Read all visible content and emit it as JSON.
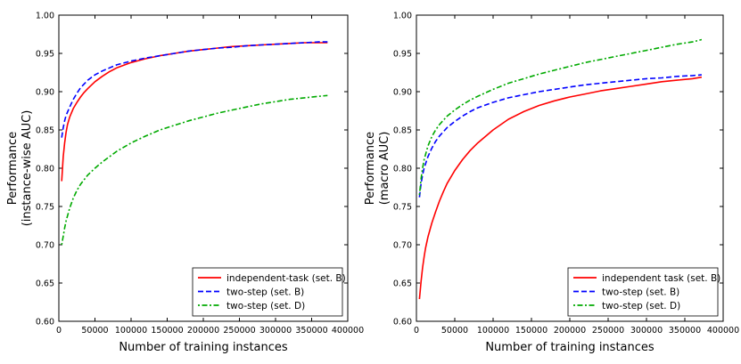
{
  "chart_data": [
    {
      "type": "line",
      "title": "",
      "xlabel": "Number of training instances",
      "ylabel_lines": [
        "Performance",
        "(instance-wise AUC)"
      ],
      "xlim": [
        0,
        400000
      ],
      "ylim": [
        0.6,
        1.0
      ],
      "x_ticks": [
        0,
        50000,
        100000,
        150000,
        200000,
        250000,
        300000,
        350000,
        400000
      ],
      "x_tick_labels": [
        "0",
        "50000",
        "100000",
        "150000",
        "200000",
        "250000",
        "300000",
        "350000",
        "400000"
      ],
      "y_ticks": [
        0.6,
        0.65,
        0.7,
        0.75,
        0.8,
        0.85,
        0.9,
        0.95,
        1.0
      ],
      "y_tick_labels": [
        "0.60",
        "0.65",
        "0.70",
        "0.75",
        "0.80",
        "0.85",
        "0.90",
        "0.95",
        "1.00"
      ],
      "legend_position": "bottom-right",
      "series": [
        {
          "name": "independent-task (set. B)",
          "color": "#ff0000",
          "style": "solid",
          "x": [
            4000,
            6000,
            8000,
            10000,
            12000,
            15000,
            20000,
            25000,
            30000,
            35000,
            40000,
            50000,
            60000,
            70000,
            80000,
            100000,
            120000,
            140000,
            160000,
            180000,
            200000,
            220000,
            240000,
            260000,
            280000,
            300000,
            320000,
            340000,
            360000,
            372000
          ],
          "y": [
            0.783,
            0.815,
            0.833,
            0.847,
            0.857,
            0.867,
            0.878,
            0.886,
            0.893,
            0.899,
            0.904,
            0.913,
            0.92,
            0.926,
            0.931,
            0.938,
            0.943,
            0.947,
            0.95,
            0.953,
            0.955,
            0.957,
            0.959,
            0.96,
            0.961,
            0.962,
            0.963,
            0.964,
            0.964,
            0.964
          ]
        },
        {
          "name": "two-step (set. B)",
          "color": "#0000ff",
          "style": "dashed",
          "x": [
            4000,
            6000,
            8000,
            10000,
            15000,
            20000,
            25000,
            30000,
            40000,
            50000,
            60000,
            70000,
            80000,
            100000,
            120000,
            140000,
            160000,
            180000,
            200000,
            220000,
            240000,
            260000,
            280000,
            300000,
            320000,
            340000,
            360000,
            372000
          ],
          "y": [
            0.84,
            0.853,
            0.862,
            0.869,
            0.88,
            0.89,
            0.898,
            0.905,
            0.915,
            0.922,
            0.927,
            0.931,
            0.935,
            0.94,
            0.944,
            0.947,
            0.95,
            0.953,
            0.955,
            0.957,
            0.958,
            0.96,
            0.961,
            0.962,
            0.963,
            0.964,
            0.965,
            0.965
          ]
        },
        {
          "name": "two-step (set. D)",
          "color": "#00aa00",
          "style": "dashdot",
          "x": [
            4000,
            6000,
            8000,
            10000,
            15000,
            20000,
            25000,
            30000,
            40000,
            50000,
            60000,
            80000,
            100000,
            120000,
            140000,
            160000,
            180000,
            200000,
            220000,
            240000,
            260000,
            280000,
            300000,
            320000,
            340000,
            360000,
            372000
          ],
          "y": [
            0.7,
            0.711,
            0.722,
            0.731,
            0.748,
            0.761,
            0.771,
            0.779,
            0.791,
            0.8,
            0.808,
            0.822,
            0.833,
            0.842,
            0.85,
            0.856,
            0.862,
            0.867,
            0.872,
            0.876,
            0.88,
            0.884,
            0.887,
            0.89,
            0.892,
            0.894,
            0.895
          ]
        }
      ]
    },
    {
      "type": "line",
      "title": "",
      "xlabel": "Number of training instances",
      "ylabel_lines": [
        "Performance",
        "(macro AUC)"
      ],
      "xlim": [
        0,
        400000
      ],
      "ylim": [
        0.6,
        1.0
      ],
      "x_ticks": [
        0,
        50000,
        100000,
        150000,
        200000,
        250000,
        300000,
        350000,
        400000
      ],
      "x_tick_labels": [
        "0",
        "50000",
        "100000",
        "150000",
        "200000",
        "250000",
        "300000",
        "350000",
        "400000"
      ],
      "y_ticks": [
        0.6,
        0.65,
        0.7,
        0.75,
        0.8,
        0.85,
        0.9,
        0.95,
        1.0
      ],
      "y_tick_labels": [
        "0.60",
        "0.65",
        "0.70",
        "0.75",
        "0.80",
        "0.85",
        "0.90",
        "0.95",
        "1.00"
      ],
      "legend_position": "bottom-right",
      "series": [
        {
          "name": "independent task (set. B)",
          "color": "#ff0000",
          "style": "solid",
          "x": [
            4000,
            6000,
            8000,
            10000,
            12000,
            15000,
            20000,
            25000,
            30000,
            35000,
            40000,
            50000,
            60000,
            70000,
            80000,
            100000,
            120000,
            140000,
            160000,
            180000,
            200000,
            220000,
            240000,
            260000,
            280000,
            300000,
            320000,
            340000,
            360000,
            372000
          ],
          "y": [
            0.629,
            0.652,
            0.67,
            0.684,
            0.696,
            0.71,
            0.728,
            0.743,
            0.757,
            0.769,
            0.78,
            0.797,
            0.811,
            0.823,
            0.833,
            0.85,
            0.864,
            0.874,
            0.882,
            0.888,
            0.893,
            0.897,
            0.901,
            0.904,
            0.907,
            0.91,
            0.913,
            0.915,
            0.917,
            0.919
          ]
        },
        {
          "name": "two-step (set. B)",
          "color": "#0000ff",
          "style": "dashed",
          "x": [
            4000,
            6000,
            8000,
            10000,
            15000,
            20000,
            25000,
            30000,
            40000,
            50000,
            60000,
            70000,
            80000,
            100000,
            120000,
            140000,
            160000,
            180000,
            200000,
            220000,
            240000,
            260000,
            280000,
            300000,
            320000,
            340000,
            360000,
            372000
          ],
          "y": [
            0.762,
            0.78,
            0.791,
            0.8,
            0.815,
            0.826,
            0.835,
            0.842,
            0.853,
            0.861,
            0.868,
            0.874,
            0.879,
            0.886,
            0.892,
            0.896,
            0.9,
            0.903,
            0.906,
            0.909,
            0.911,
            0.913,
            0.915,
            0.917,
            0.918,
            0.92,
            0.921,
            0.922
          ]
        },
        {
          "name": "two-step (set. D)",
          "color": "#00aa00",
          "style": "dashdot",
          "x": [
            4000,
            6000,
            8000,
            10000,
            15000,
            20000,
            25000,
            30000,
            40000,
            50000,
            60000,
            70000,
            80000,
            100000,
            120000,
            140000,
            160000,
            180000,
            200000,
            220000,
            240000,
            260000,
            280000,
            300000,
            320000,
            340000,
            360000,
            372000
          ],
          "y": [
            0.765,
            0.786,
            0.8,
            0.811,
            0.829,
            0.841,
            0.85,
            0.857,
            0.868,
            0.876,
            0.883,
            0.889,
            0.894,
            0.903,
            0.911,
            0.917,
            0.923,
            0.928,
            0.933,
            0.938,
            0.942,
            0.946,
            0.95,
            0.954,
            0.958,
            0.962,
            0.965,
            0.968
          ]
        }
      ]
    }
  ]
}
